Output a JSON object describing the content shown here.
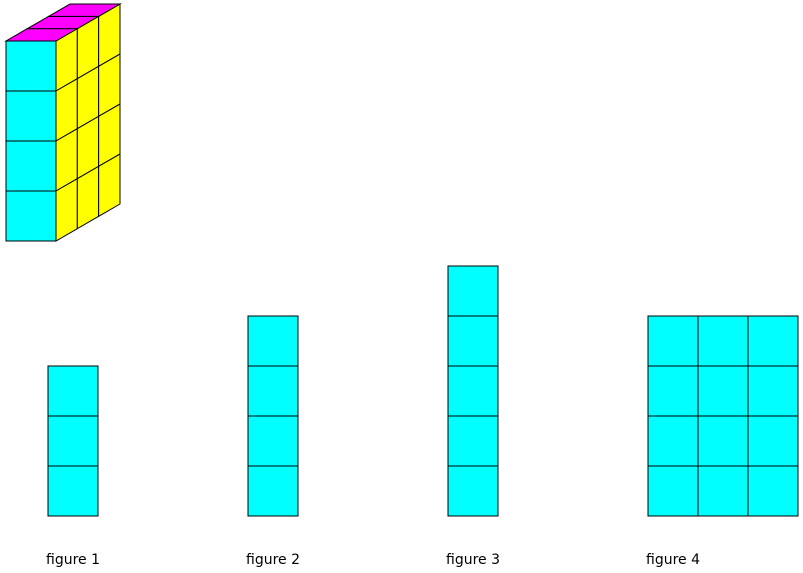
{
  "colors": {
    "front": "#00FFFF",
    "side": "#FFFF00",
    "top": "#FF00FF",
    "stroke": "#000000"
  },
  "solid": {
    "columns_deep": 3,
    "rows_high": 4,
    "width_cubes": 1
  },
  "figures": [
    {
      "caption": "figure 1",
      "cols": 1,
      "rows": 3
    },
    {
      "caption": "figure 2",
      "cols": 1,
      "rows": 4
    },
    {
      "caption": "figure 3",
      "cols": 1,
      "rows": 5
    },
    {
      "caption": "figure 4",
      "cols": 3,
      "rows": 4
    }
  ]
}
